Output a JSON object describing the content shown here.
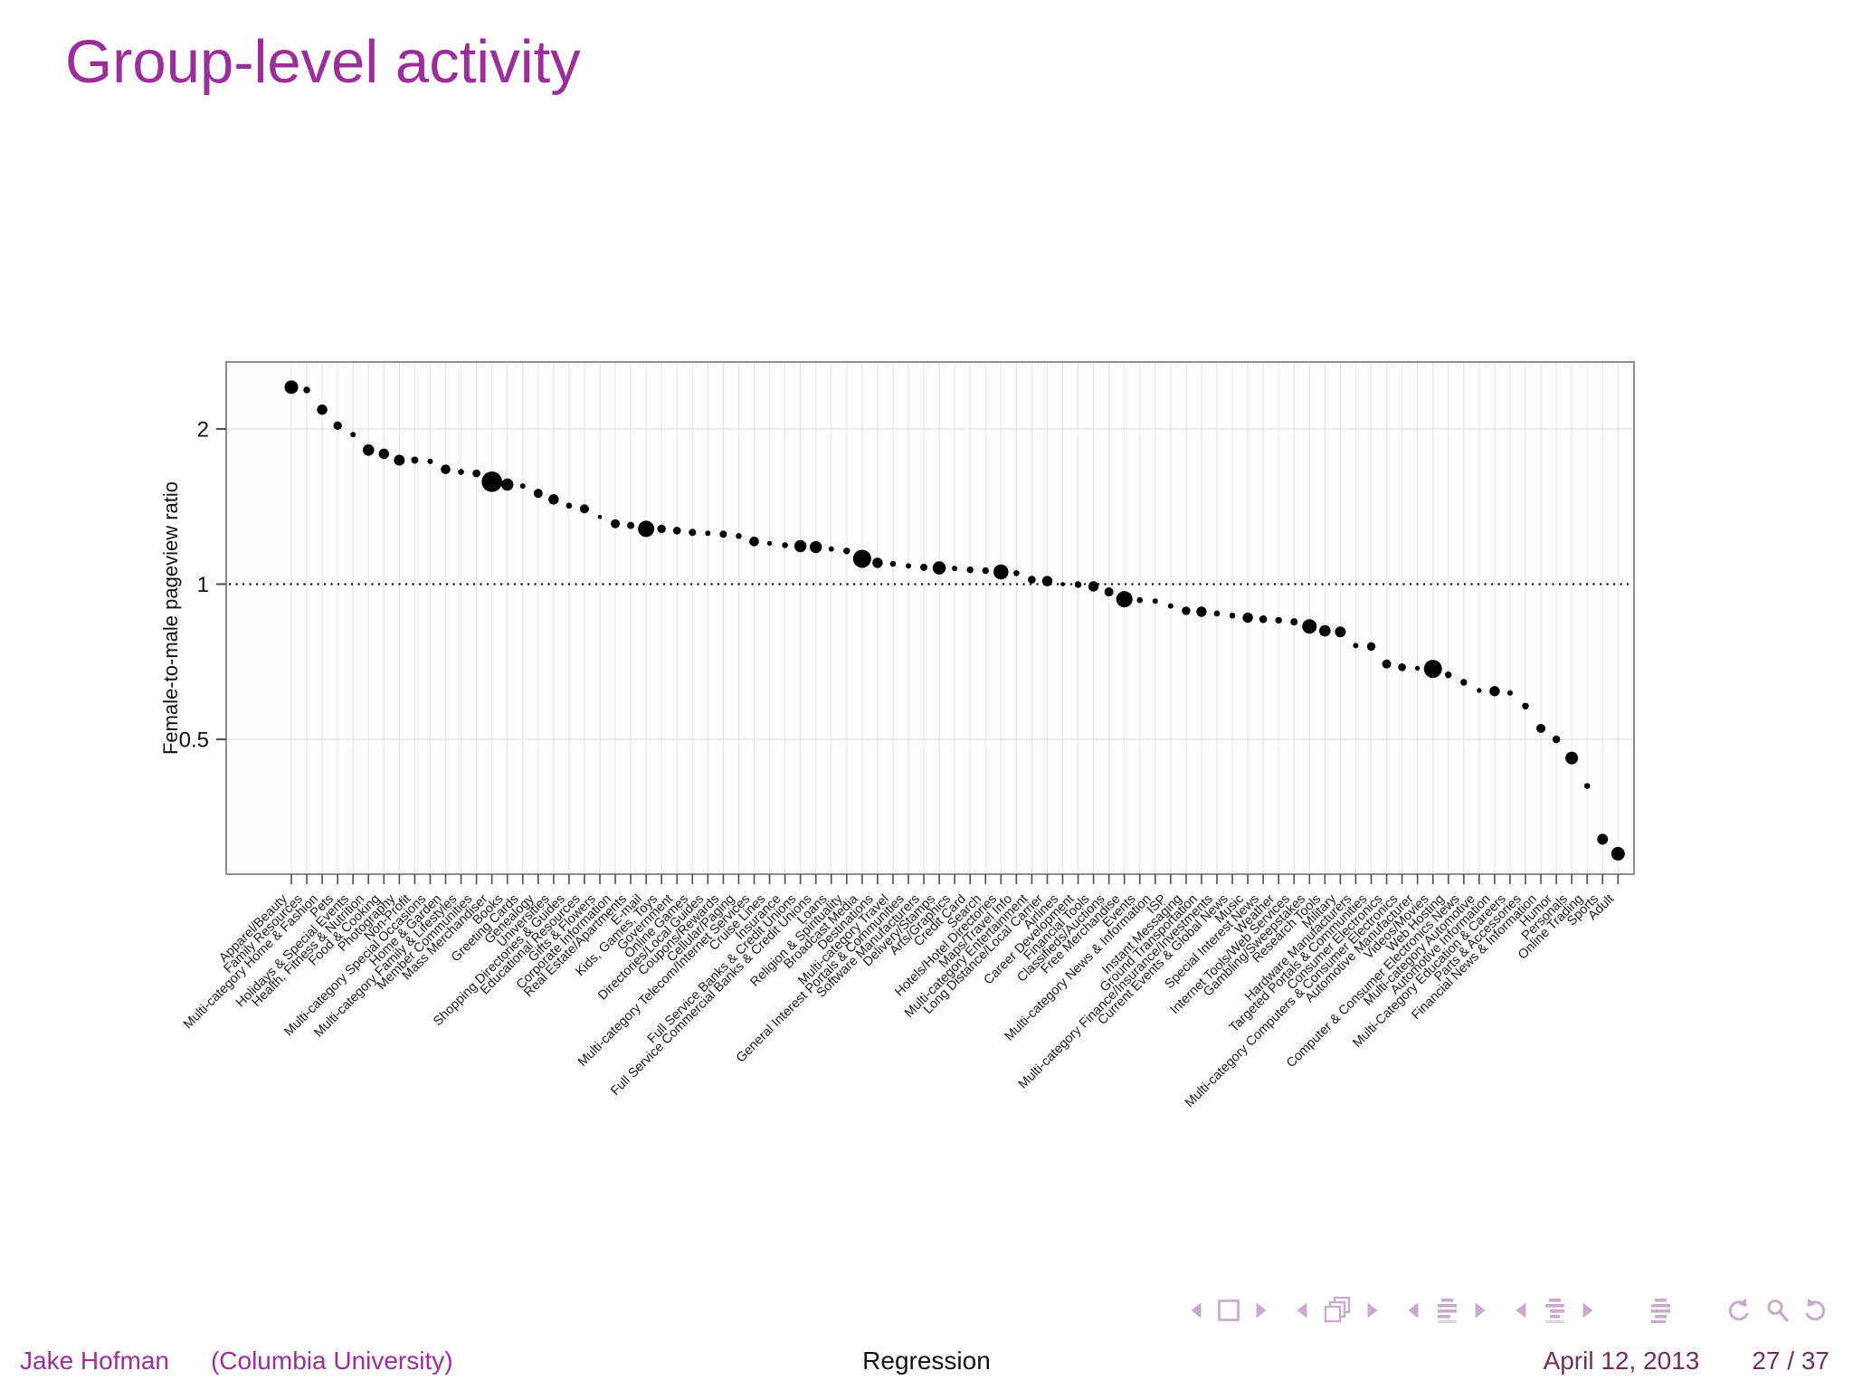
{
  "slide": {
    "title": "Group-level activity",
    "footer": {
      "author": "Jake Hofman",
      "affiliation": "(Columbia University)",
      "center_title": "Regression",
      "date": "April 12, 2013",
      "page": "27 / 37"
    },
    "colors": {
      "title": "#9b2e9b",
      "footer_author": "#9b2e9b",
      "footer_date": "#6f3060",
      "nav_icon": "#c9a9cd",
      "point": "#000000",
      "grid_v": "#eae5ea",
      "grid_h": "#e3dde3",
      "plot_border": "#8f8f8f",
      "axis_tick": "#4d4d4d"
    },
    "nav_groups": [
      [
        "nav-back-triangle-icon",
        "nav-frame-icon",
        "nav-forward-triangle-icon"
      ],
      [
        "nav-back-triangle-icon",
        "nav-frames-stack-icon",
        "nav-forward-triangle-icon"
      ],
      [
        "nav-back-triangle-icon",
        "nav-section-list-icon",
        "nav-forward-triangle-icon"
      ],
      [
        "nav-back-triangle-icon",
        "nav-subsection-list-icon",
        "nav-forward-triangle-icon"
      ],
      [
        "nav-appendix-list-icon"
      ],
      [
        "nav-undo-icon",
        "nav-search-icon",
        "nav-redo-icon"
      ]
    ]
  },
  "chart_data": {
    "type": "scatter",
    "title": "",
    "xlabel": "",
    "ylabel": "Female-to-male pageview ratio",
    "y_scale": "log2",
    "y_ticks": [
      "2",
      "1",
      "0.5"
    ],
    "y_tick_values": [
      2,
      1,
      0.5
    ],
    "ylim": [
      0.27,
      2.7
    ],
    "reference_line_y": 1,
    "grid": true,
    "legend": "none",
    "point_size_note": "r = bubble radius in px as drawn",
    "points": [
      {
        "label": "Apparel/Beauty",
        "value": 2.41,
        "r": 7.5
      },
      {
        "label": "Family Resources",
        "value": 2.38,
        "r": 3.7
      },
      {
        "label": "Multi-category Home & Fashion",
        "value": 2.18,
        "r": 5.7
      },
      {
        "label": "Pets",
        "value": 2.03,
        "r": 4.7
      },
      {
        "label": "Holidays & Special Events",
        "value": 1.95,
        "r": 3.0
      },
      {
        "label": "Health, Fitness & Nutrition",
        "value": 1.82,
        "r": 6.3
      },
      {
        "label": "Food & Cooking",
        "value": 1.79,
        "r": 5.7
      },
      {
        "label": "Photography",
        "value": 1.74,
        "r": 6.0
      },
      {
        "label": "Non-Profit",
        "value": 1.74,
        "r": 4.0
      },
      {
        "label": "Multi-category Special Occasions",
        "value": 1.73,
        "r": 3.0
      },
      {
        "label": "Home & Garden",
        "value": 1.67,
        "r": 5.3
      },
      {
        "label": "Multi-category Family & Lifestyles",
        "value": 1.65,
        "r": 3.3
      },
      {
        "label": "Member Communities",
        "value": 1.64,
        "r": 4.3
      },
      {
        "label": "Mass Merchandiser",
        "value": 1.58,
        "r": 11.3
      },
      {
        "label": "Books",
        "value": 1.56,
        "r": 6.7
      },
      {
        "label": "Greeting Cards",
        "value": 1.55,
        "r": 3.0
      },
      {
        "label": "Genealogy",
        "value": 1.5,
        "r": 5.0
      },
      {
        "label": "Universities",
        "value": 1.46,
        "r": 5.7
      },
      {
        "label": "Shopping Directories & Guides",
        "value": 1.42,
        "r": 3.3
      },
      {
        "label": "Educational Resources",
        "value": 1.4,
        "r": 5.0
      },
      {
        "label": "Gifts & Flowers",
        "value": 1.35,
        "r": 2.3
      },
      {
        "label": "Corporate Information",
        "value": 1.31,
        "r": 5.0
      },
      {
        "label": "Real Estate/Apartments",
        "value": 1.3,
        "r": 4.0
      },
      {
        "label": "E-mail",
        "value": 1.28,
        "r": 9.0
      },
      {
        "label": "Kids, Games, Toys",
        "value": 1.28,
        "r": 4.7
      },
      {
        "label": "Government",
        "value": 1.27,
        "r": 4.3
      },
      {
        "label": "Online Games",
        "value": 1.26,
        "r": 4.0
      },
      {
        "label": "Directories/Local Guides",
        "value": 1.255,
        "r": 3.0
      },
      {
        "label": "Coupons/Rewards",
        "value": 1.25,
        "r": 4.0
      },
      {
        "label": "Cellular/Paging",
        "value": 1.24,
        "r": 3.3
      },
      {
        "label": "Multi-category Telecom/Internet Services",
        "value": 1.21,
        "r": 5.3
      },
      {
        "label": "Cruise Lines",
        "value": 1.2,
        "r": 2.7
      },
      {
        "label": "Insurance",
        "value": 1.19,
        "r": 3.3
      },
      {
        "label": "Full Service Banks & Credit Unions",
        "value": 1.185,
        "r": 6.7
      },
      {
        "label": "Full Service Commercial Banks & Credit Unions",
        "value": 1.18,
        "r": 6.7
      },
      {
        "label": "Loans",
        "value": 1.17,
        "r": 3.0
      },
      {
        "label": "Religion & Spirituality",
        "value": 1.16,
        "r": 3.7
      },
      {
        "label": "Broadcast Media",
        "value": 1.12,
        "r": 10.0
      },
      {
        "label": "Destinations",
        "value": 1.1,
        "r": 5.7
      },
      {
        "label": "Multi-category Travel",
        "value": 1.095,
        "r": 3.3
      },
      {
        "label": "General Interest Portals & Communities",
        "value": 1.085,
        "r": 3.0
      },
      {
        "label": "Software Manufacturers",
        "value": 1.078,
        "r": 4.0
      },
      {
        "label": "Delivery/Stamps",
        "value": 1.075,
        "r": 7.3
      },
      {
        "label": "Arts/Graphics",
        "value": 1.072,
        "r": 3.0
      },
      {
        "label": "Credit Card",
        "value": 1.066,
        "r": 3.7
      },
      {
        "label": "Search",
        "value": 1.062,
        "r": 3.7
      },
      {
        "label": "Hotels/Hotel Directories",
        "value": 1.056,
        "r": 8.3
      },
      {
        "label": "Maps/Travel Info",
        "value": 1.05,
        "r": 3.3
      },
      {
        "label": "Multi-category Entertainment",
        "value": 1.02,
        "r": 4.3
      },
      {
        "label": "Long Distance/Local Carrier",
        "value": 1.014,
        "r": 5.7
      },
      {
        "label": "Airlines",
        "value": 1.0,
        "r": 2.3
      },
      {
        "label": "Career Development",
        "value": 0.998,
        "r": 3.7
      },
      {
        "label": "Financial Tools",
        "value": 0.99,
        "r": 5.7
      },
      {
        "label": "Classifieds/Auctions",
        "value": 0.966,
        "r": 5.0
      },
      {
        "label": "Free Merchandise",
        "value": 0.935,
        "r": 9.0
      },
      {
        "label": "Events",
        "value": 0.931,
        "r": 3.3
      },
      {
        "label": "Multi-category News & Information",
        "value": 0.927,
        "r": 3.0
      },
      {
        "label": "ISP",
        "value": 0.907,
        "r": 3.0
      },
      {
        "label": "Instant Messaging",
        "value": 0.888,
        "r": 4.7
      },
      {
        "label": "Ground Transportation",
        "value": 0.884,
        "r": 5.7
      },
      {
        "label": "Multi-category Finance/Insurance/Investments",
        "value": 0.877,
        "r": 3.3
      },
      {
        "label": "Current Events & Global News",
        "value": 0.869,
        "r": 3.3
      },
      {
        "label": "Music",
        "value": 0.861,
        "r": 5.7
      },
      {
        "label": "Special Interest News",
        "value": 0.855,
        "r": 4.3
      },
      {
        "label": "Weather",
        "value": 0.851,
        "r": 3.7
      },
      {
        "label": "Internet Tools/Web Services",
        "value": 0.845,
        "r": 4.0
      },
      {
        "label": "Gambling/Sweepstakes",
        "value": 0.828,
        "r": 8.0
      },
      {
        "label": "Research Tools",
        "value": 0.812,
        "r": 6.3
      },
      {
        "label": "Military",
        "value": 0.808,
        "r": 6.0
      },
      {
        "label": "Hardware Manufacturers",
        "value": 0.76,
        "r": 3.0
      },
      {
        "label": "Targeted Portals & Communities",
        "value": 0.757,
        "r": 4.7
      },
      {
        "label": "Consumer Electronics",
        "value": 0.7,
        "r": 5.0
      },
      {
        "label": "Multi-category Computers & Consumer Electronics",
        "value": 0.69,
        "r": 4.3
      },
      {
        "label": "Automotive Manufacturer",
        "value": 0.687,
        "r": 2.7
      },
      {
        "label": "Videos/Movies",
        "value": 0.685,
        "r": 10.0
      },
      {
        "label": "Web Hosting",
        "value": 0.667,
        "r": 3.7
      },
      {
        "label": "Computer & Consumer Electronics News",
        "value": 0.645,
        "r": 3.7
      },
      {
        "label": "Multi-category Automotive",
        "value": 0.622,
        "r": 2.7
      },
      {
        "label": "Automotive Information",
        "value": 0.62,
        "r": 5.7
      },
      {
        "label": "Multi-Category Education & Careers",
        "value": 0.615,
        "r": 3.0
      },
      {
        "label": "Parts & Accessories",
        "value": 0.58,
        "r": 3.7
      },
      {
        "label": "Financial News & Information",
        "value": 0.525,
        "r": 5.0
      },
      {
        "label": "Humor",
        "value": 0.5,
        "r": 4.3
      },
      {
        "label": "Personals",
        "value": 0.46,
        "r": 7.0
      },
      {
        "label": "Online Trading",
        "value": 0.406,
        "r": 3.3
      },
      {
        "label": "Sports",
        "value": 0.32,
        "r": 6.0
      },
      {
        "label": "Adult",
        "value": 0.3,
        "r": 7.5
      }
    ]
  }
}
